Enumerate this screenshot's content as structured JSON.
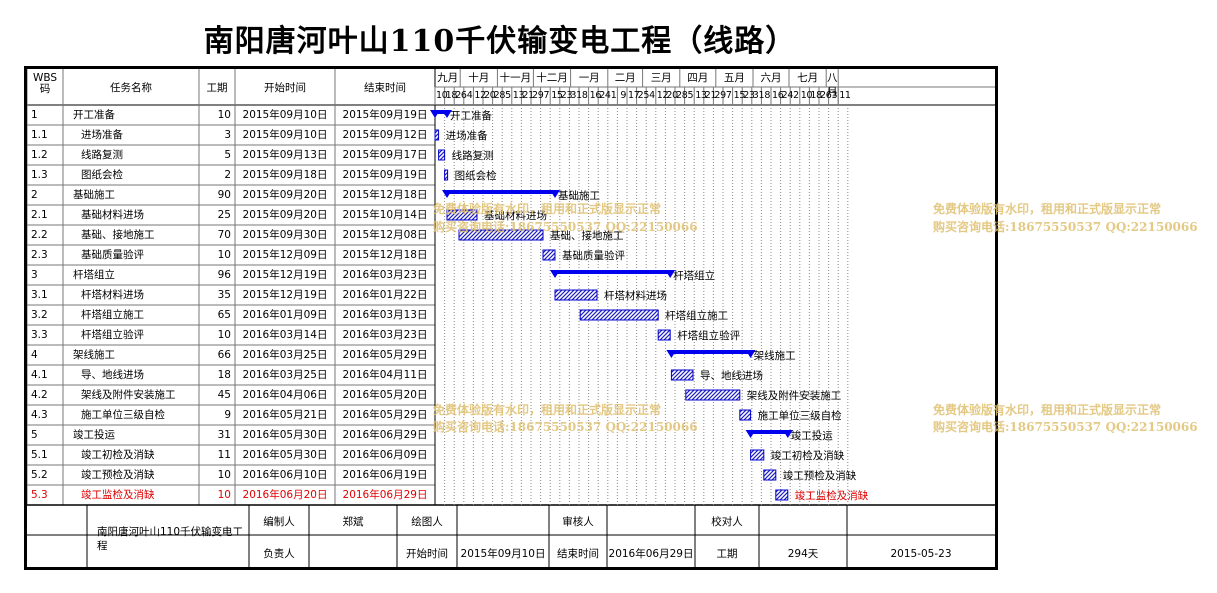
{
  "title": "南阳唐河叶山110千伏输变电工程（线路）",
  "table_headers": {
    "wbs": "WBS\n码",
    "name": "任务名称",
    "duration": "工期",
    "start": "开始时间",
    "end": "结束时间"
  },
  "months": [
    "九月",
    "十月",
    "十一月",
    "十二月",
    "一月",
    "二月",
    "三月",
    "四月",
    "五月",
    "六月",
    "七月",
    "八月"
  ],
  "days": [
    "10",
    "18",
    "26",
    "4",
    "12",
    "20",
    "28",
    "5",
    "13",
    "21",
    "29",
    "7",
    "15",
    "23",
    "31",
    "8",
    "16",
    "24",
    "1",
    "9",
    "17",
    "25",
    "4",
    "12",
    "20",
    "28",
    "5",
    "13",
    "21",
    "29",
    "7",
    "15",
    "23",
    "31",
    "8",
    "16",
    "24",
    "2",
    "10",
    "18",
    "26",
    "3",
    "11"
  ],
  "chart_data": {
    "type": "gantt",
    "title": "南阳唐河叶山110千伏输变电工程（线路）",
    "x_axis": {
      "unit": "date",
      "start": "2015-09-10",
      "end": "2016-08-11"
    },
    "tasks": [
      {
        "wbs": "1",
        "name": "开工准备",
        "duration": "10",
        "start": "2015年09月10日",
        "end": "2015年09月19日",
        "s": "2015-09-10",
        "e": "2015-09-19",
        "summary": true,
        "level": 0,
        "red": false
      },
      {
        "wbs": "1.1",
        "name": "进场准备",
        "duration": "3",
        "start": "2015年09月10日",
        "end": "2015年09月12日",
        "s": "2015-09-10",
        "e": "2015-09-12",
        "summary": false,
        "level": 1,
        "red": false
      },
      {
        "wbs": "1.2",
        "name": "线路复测",
        "duration": "5",
        "start": "2015年09月13日",
        "end": "2015年09月17日",
        "s": "2015-09-13",
        "e": "2015-09-17",
        "summary": false,
        "level": 1,
        "red": false
      },
      {
        "wbs": "1.3",
        "name": "图纸会检",
        "duration": "2",
        "start": "2015年09月18日",
        "end": "2015年09月19日",
        "s": "2015-09-18",
        "e": "2015-09-19",
        "summary": false,
        "level": 1,
        "red": false
      },
      {
        "wbs": "2",
        "name": "基础施工",
        "duration": "90",
        "start": "2015年09月20日",
        "end": "2015年12月18日",
        "s": "2015-09-20",
        "e": "2015-12-18",
        "summary": true,
        "level": 0,
        "red": false
      },
      {
        "wbs": "2.1",
        "name": "基础材料进场",
        "duration": "25",
        "start": "2015年09月20日",
        "end": "2015年10月14日",
        "s": "2015-09-20",
        "e": "2015-10-14",
        "summary": false,
        "level": 1,
        "red": false
      },
      {
        "wbs": "2.2",
        "name": "基础、接地施工",
        "duration": "70",
        "start": "2015年09月30日",
        "end": "2015年12月08日",
        "s": "2015-09-30",
        "e": "2015-12-08",
        "summary": false,
        "level": 1,
        "red": false
      },
      {
        "wbs": "2.3",
        "name": "基础质量验评",
        "duration": "10",
        "start": "2015年12月09日",
        "end": "2015年12月18日",
        "s": "2015-12-09",
        "e": "2015-12-18",
        "summary": false,
        "level": 1,
        "red": false
      },
      {
        "wbs": "3",
        "name": "杆塔组立",
        "duration": "96",
        "start": "2015年12月19日",
        "end": "2016年03月23日",
        "s": "2015-12-19",
        "e": "2016-03-23",
        "summary": true,
        "level": 0,
        "red": false
      },
      {
        "wbs": "3.1",
        "name": "杆塔材料进场",
        "duration": "35",
        "start": "2015年12月19日",
        "end": "2016年01月22日",
        "s": "2015-12-19",
        "e": "2016-01-22",
        "summary": false,
        "level": 1,
        "red": false
      },
      {
        "wbs": "3.2",
        "name": "杆塔组立施工",
        "duration": "65",
        "start": "2016年01月09日",
        "end": "2016年03月13日",
        "s": "2016-01-09",
        "e": "2016-03-13",
        "summary": false,
        "level": 1,
        "red": false
      },
      {
        "wbs": "3.3",
        "name": "杆塔组立验评",
        "duration": "10",
        "start": "2016年03月14日",
        "end": "2016年03月23日",
        "s": "2016-03-14",
        "e": "2016-03-23",
        "summary": false,
        "level": 1,
        "red": false
      },
      {
        "wbs": "4",
        "name": "架线施工",
        "duration": "66",
        "start": "2016年03月25日",
        "end": "2016年05月29日",
        "s": "2016-03-25",
        "e": "2016-05-29",
        "summary": true,
        "level": 0,
        "red": false
      },
      {
        "wbs": "4.1",
        "name": "导、地线进场",
        "duration": "18",
        "start": "2016年03月25日",
        "end": "2016年04月11日",
        "s": "2016-03-25",
        "e": "2016-04-11",
        "summary": false,
        "level": 1,
        "red": false
      },
      {
        "wbs": "4.2",
        "name": "架线及附件安装施工",
        "duration": "45",
        "start": "2016年04月06日",
        "end": "2016年05月20日",
        "s": "2016-04-06",
        "e": "2016-05-20",
        "summary": false,
        "level": 1,
        "red": false
      },
      {
        "wbs": "4.3",
        "name": "施工单位三级自检",
        "duration": "9",
        "start": "2016年05月21日",
        "end": "2016年05月29日",
        "s": "2016-05-21",
        "e": "2016-05-29",
        "summary": false,
        "level": 1,
        "red": false
      },
      {
        "wbs": "5",
        "name": "竣工投运",
        "duration": "31",
        "start": "2016年05月30日",
        "end": "2016年06月29日",
        "s": "2016-05-30",
        "e": "2016-06-29",
        "summary": true,
        "level": 0,
        "red": false
      },
      {
        "wbs": "5.1",
        "name": "竣工初检及消缺",
        "duration": "11",
        "start": "2016年05月30日",
        "end": "2016年06月09日",
        "s": "2016-05-30",
        "e": "2016-06-09",
        "summary": false,
        "level": 1,
        "red": false
      },
      {
        "wbs": "5.2",
        "name": "竣工预检及消缺",
        "duration": "10",
        "start": "2016年06月10日",
        "end": "2016年06月19日",
        "s": "2016-06-10",
        "e": "2016-06-19",
        "summary": false,
        "level": 1,
        "red": false
      },
      {
        "wbs": "5.3",
        "name": "竣工监检及消缺",
        "duration": "10",
        "start": "2016年06月20日",
        "end": "2016年06月29日",
        "s": "2016-06-20",
        "e": "2016-06-29",
        "summary": false,
        "level": 1,
        "red": true
      }
    ],
    "colors": {
      "summary": "#0000ee",
      "task": "#0000cc",
      "task_fill": "#6666dd",
      "highlight": "#e00000"
    }
  },
  "footer": {
    "project_name": "南阳唐河叶山110千伏输变电工程",
    "label_compiler": "编制人",
    "compiler": "郑斌",
    "label_drafter": "绘图人",
    "drafter": "",
    "label_reviewer": "审核人",
    "reviewer": "",
    "label_checker": "校对人",
    "checker": "",
    "label_manager": "负责人",
    "manager": "",
    "label_start": "开始时间",
    "start": "2015年09月10日",
    "label_end": "结束时间",
    "end": "2016年06月29日",
    "label_duration": "工期",
    "duration": "294天",
    "date": "2015-05-23"
  },
  "watermark": {
    "line1": "免费体验版有水印，租用和正式版显示正常",
    "line2": "购买咨询电话:18675550537 QQ:22150066"
  }
}
